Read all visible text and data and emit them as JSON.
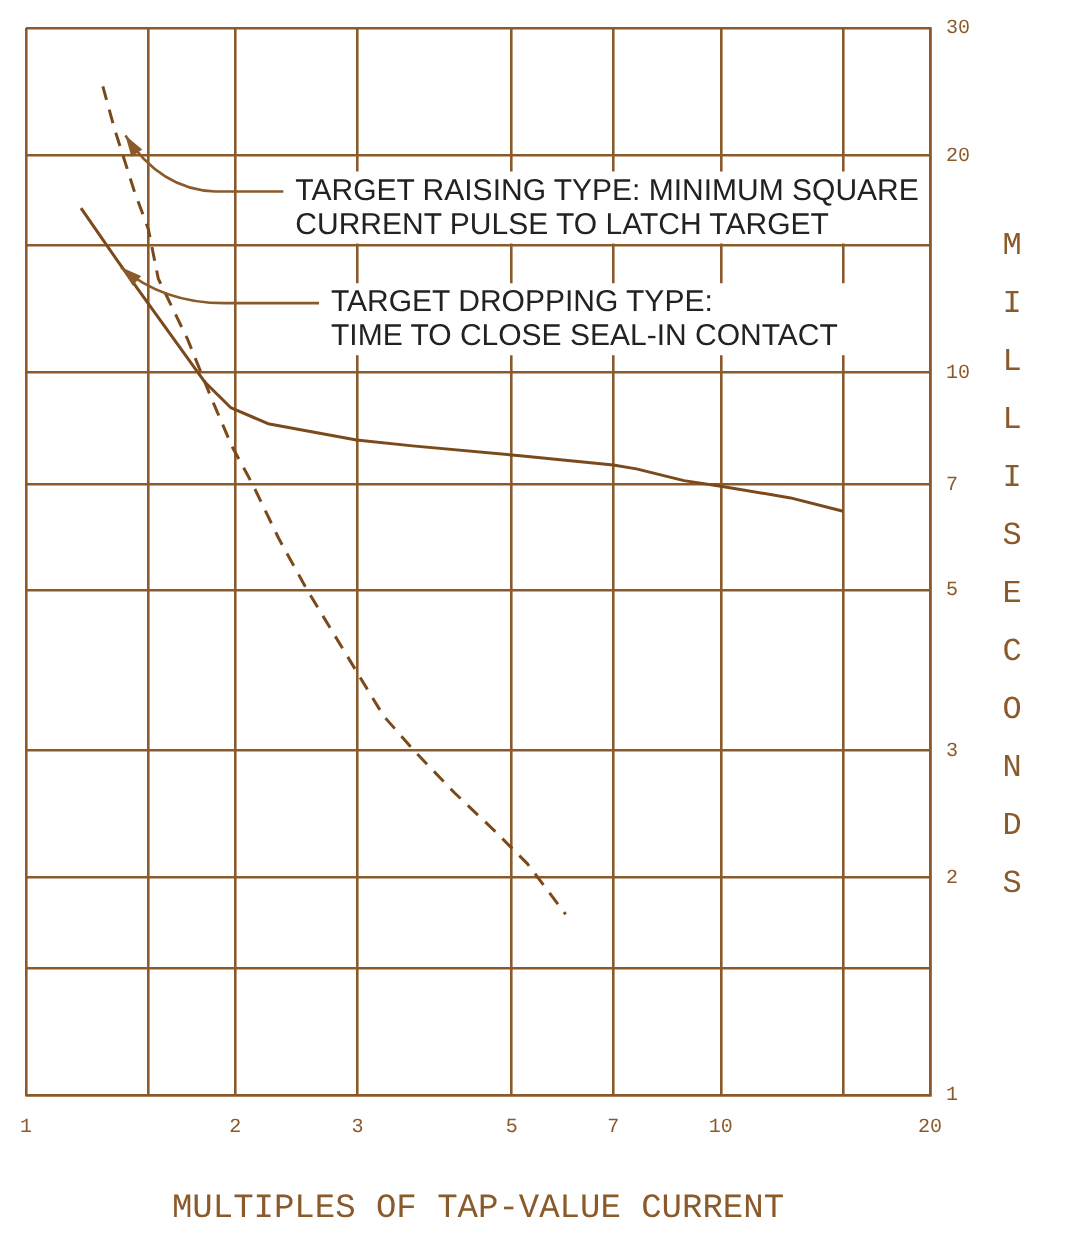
{
  "chart_data": {
    "type": "line",
    "xlabel": "MULTIPLES OF TAP-VALUE CURRENT",
    "ylabel": "MILLISECONDS",
    "log": "xy",
    "grid": true,
    "legend": false,
    "marker": "none",
    "xlim": [
      1,
      20
    ],
    "ylim": [
      1,
      30
    ],
    "xticks": [
      1,
      {
        "value": 1.5,
        "label": null
      },
      2,
      3,
      5,
      7,
      10,
      {
        "value": 15,
        "label": null
      },
      20
    ],
    "yticks": [
      1,
      {
        "value": 1.5,
        "label": null
      },
      2,
      3,
      5,
      7,
      10,
      {
        "value": 15,
        "label": null
      },
      20,
      30
    ],
    "series": [
      {
        "color": "#7a4a1c",
        "line_style": "dashed",
        "x": [
          1.29,
          1.34,
          1.43,
          1.5,
          1.55,
          1.71,
          1.85,
          1.98,
          2.12,
          2.31,
          2.54,
          2.99,
          3.27,
          3.64,
          4.14,
          4.73,
          5.27,
          5.98
        ],
        "values": [
          24.9,
          21.8,
          17.9,
          15.8,
          13.5,
          11.1,
          9.2,
          7.9,
          7.0,
          5.9,
          5.0,
          3.86,
          3.35,
          2.98,
          2.62,
          2.32,
          2.09,
          1.78
        ]
      },
      {
        "color": "#7a4a1c",
        "line_style": "solid",
        "x": [
          1.2,
          1.36,
          1.81,
          1.97,
          2.23,
          2.99,
          3.6,
          5.1,
          7.0,
          7.56,
          8.85,
          10.05,
          12.6,
          15.0
        ],
        "values": [
          16.9,
          14.2,
          9.7,
          8.95,
          8.5,
          8.07,
          7.92,
          7.68,
          7.45,
          7.36,
          7.09,
          6.96,
          6.71,
          6.43
        ]
      }
    ],
    "annotations": [
      {
        "text": "TARGET RAISING TYPE: MINIMUM SQUARE\nCURRENT PULSE TO LATCH TARGET",
        "x": 1.39,
        "y": 21.3
      },
      {
        "text": "TARGET DROPPING TYPE:\nTIME TO CLOSE SEAL-IN CONTACT",
        "x": 1.37,
        "y": 14.0
      }
    ]
  }
}
